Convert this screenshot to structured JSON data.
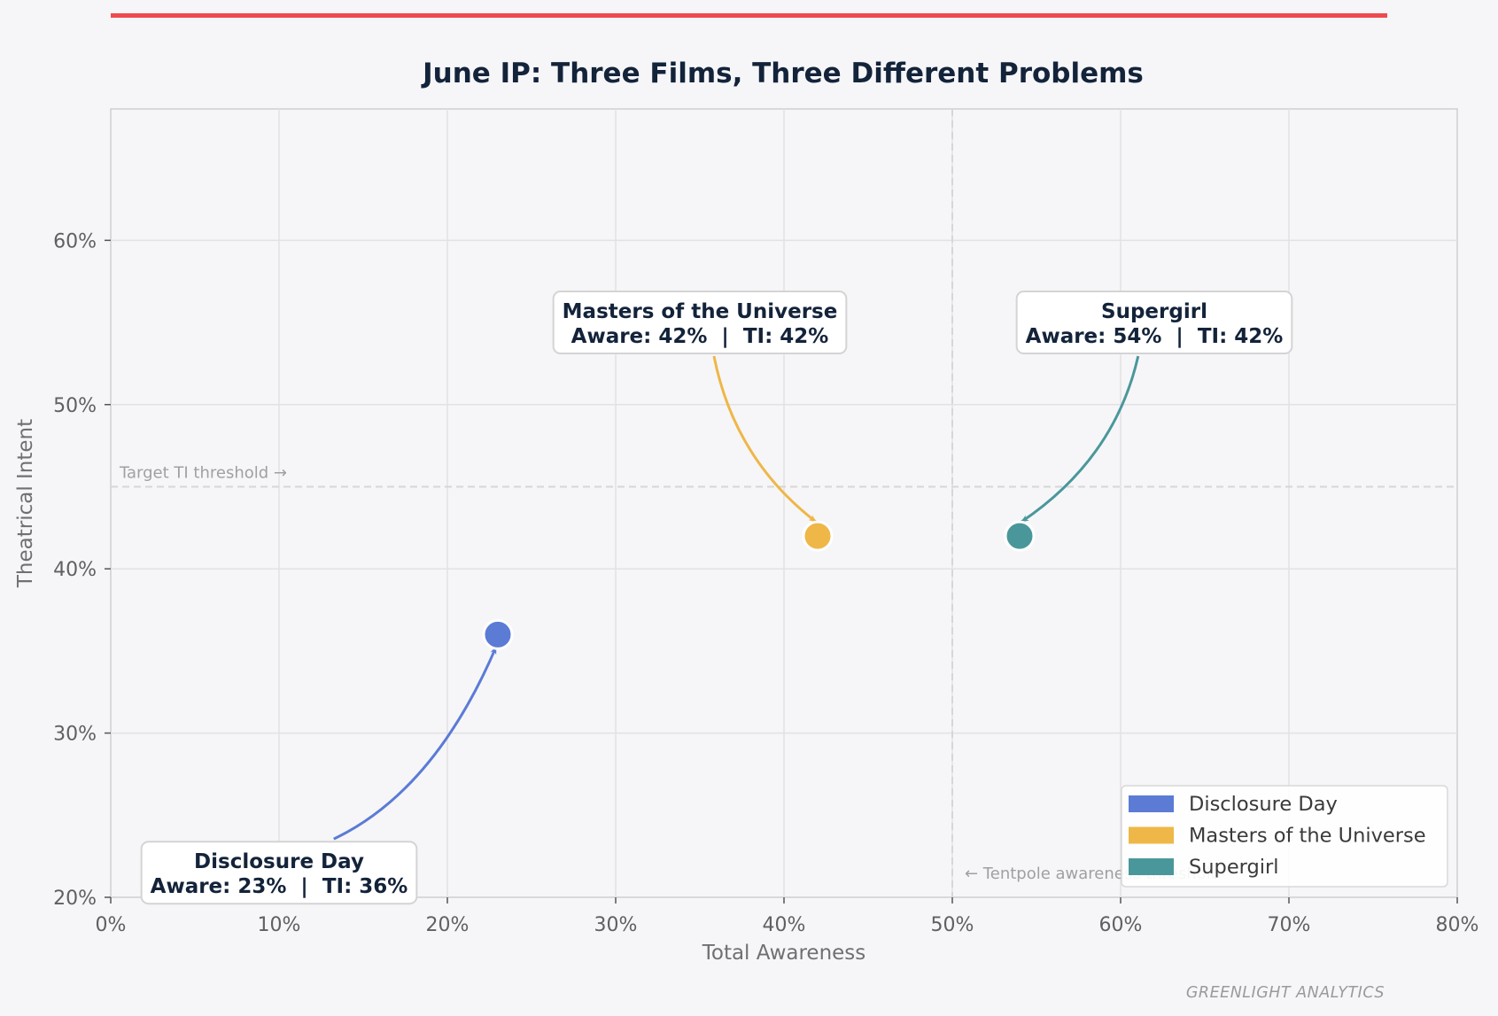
{
  "brand": "GREENLIGHT ANALYTICS",
  "colors": {
    "top_bar": "#ef4a4f",
    "background": "#f6f6f9",
    "plot_background": "#f6f6f9"
  },
  "chart_data": {
    "type": "scatter",
    "title": "June IP: Three Films, Three Different Problems",
    "xlabel": "Total Awareness",
    "ylabel": "Theatrical Intent",
    "xlim": [
      0,
      80
    ],
    "ylim": [
      20,
      68
    ],
    "x_ticks": [
      0,
      10,
      20,
      30,
      40,
      50,
      60,
      70,
      80
    ],
    "x_tick_labels": [
      "0%",
      "10%",
      "20%",
      "30%",
      "40%",
      "50%",
      "60%",
      "70%",
      "80%"
    ],
    "y_ticks": [
      20,
      30,
      40,
      50,
      60
    ],
    "y_tick_labels": [
      "20%",
      "30%",
      "40%",
      "50%",
      "60%"
    ],
    "grid": true,
    "legend_position": "bottom-right",
    "reference_lines": [
      {
        "axis": "y",
        "value": 45,
        "label": "Target TI threshold →"
      },
      {
        "axis": "x",
        "value": 50,
        "label": "← Tentpole awareness threshold"
      }
    ],
    "series": [
      {
        "name": "Disclosure Day",
        "color": "#5b7bd5",
        "x": 23,
        "y": 36,
        "callout_title": "Disclosure Day",
        "callout_detail": "Aware: 23%  |  TI: 36%",
        "callout_center": [
          10,
          21.5
        ]
      },
      {
        "name": "Masters of the Universe",
        "color": "#eeb747",
        "x": 42,
        "y": 42,
        "callout_title": "Masters of the Universe",
        "callout_detail": "Aware: 42%  |  TI: 42%",
        "callout_center": [
          35,
          55
        ]
      },
      {
        "name": "Supergirl",
        "color": "#4a979b",
        "x": 54,
        "y": 42,
        "callout_title": "Supergirl",
        "callout_detail": "Aware: 54%  |  TI: 42%",
        "callout_center": [
          62,
          55
        ]
      }
    ]
  }
}
